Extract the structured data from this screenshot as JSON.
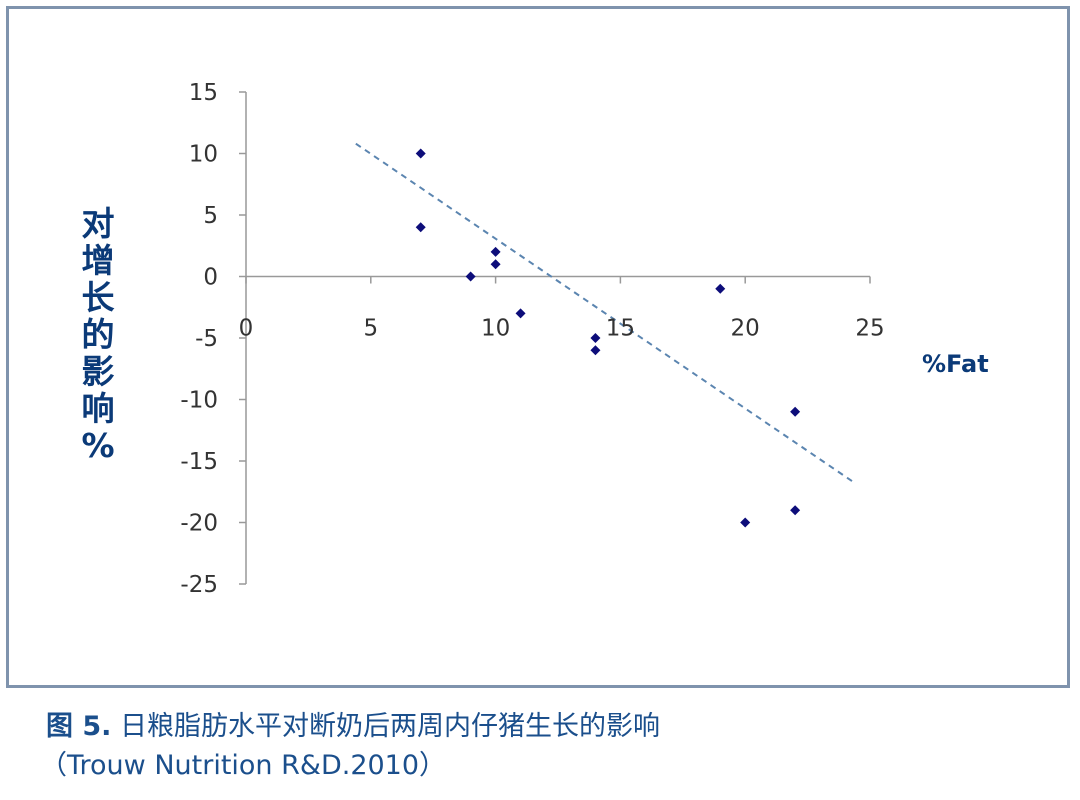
{
  "chart_data": {
    "type": "scatter",
    "xlabel": "%Fat",
    "ylabel": "对增长的影响 %",
    "xlim": [
      0,
      25
    ],
    "ylim": [
      -25,
      15
    ],
    "x_ticks": [
      "0",
      "5",
      "10",
      "15",
      "20",
      "25"
    ],
    "y_ticks": [
      "15",
      "10",
      "5",
      "0",
      "-5",
      "-10",
      "-15",
      "-20",
      "-25"
    ],
    "series": [
      {
        "points": [
          {
            "x": 7,
            "y": 10
          },
          {
            "x": 7,
            "y": 4
          },
          {
            "x": 9,
            "y": 0
          },
          {
            "x": 10,
            "y": 2
          },
          {
            "x": 10,
            "y": 1
          },
          {
            "x": 11,
            "y": -3
          },
          {
            "x": 14,
            "y": -5
          },
          {
            "x": 14,
            "y": -6
          },
          {
            "x": 19,
            "y": -1
          },
          {
            "x": 20,
            "y": -20
          },
          {
            "x": 22,
            "y": -11
          },
          {
            "x": 22,
            "y": -19
          }
        ]
      }
    ],
    "trendline": {
      "style": "dashed",
      "x": [
        4.4,
        24.4
      ],
      "y": [
        10.8,
        -16.8
      ]
    },
    "grid": false,
    "colors": {
      "points": "#0d0d7a",
      "trendline": "#5b85b0",
      "axis": "#999999",
      "label": "#0b3a78"
    }
  },
  "ylabel_chars": [
    "对",
    "增",
    "长",
    "的",
    "影",
    "响",
    "%"
  ],
  "caption": {
    "figure_number": "图 5.",
    "title": "日粮脂肪水平对断奶后两周内仔猪生长的影响",
    "source": "（Trouw Nutrition R&D.2010）"
  }
}
